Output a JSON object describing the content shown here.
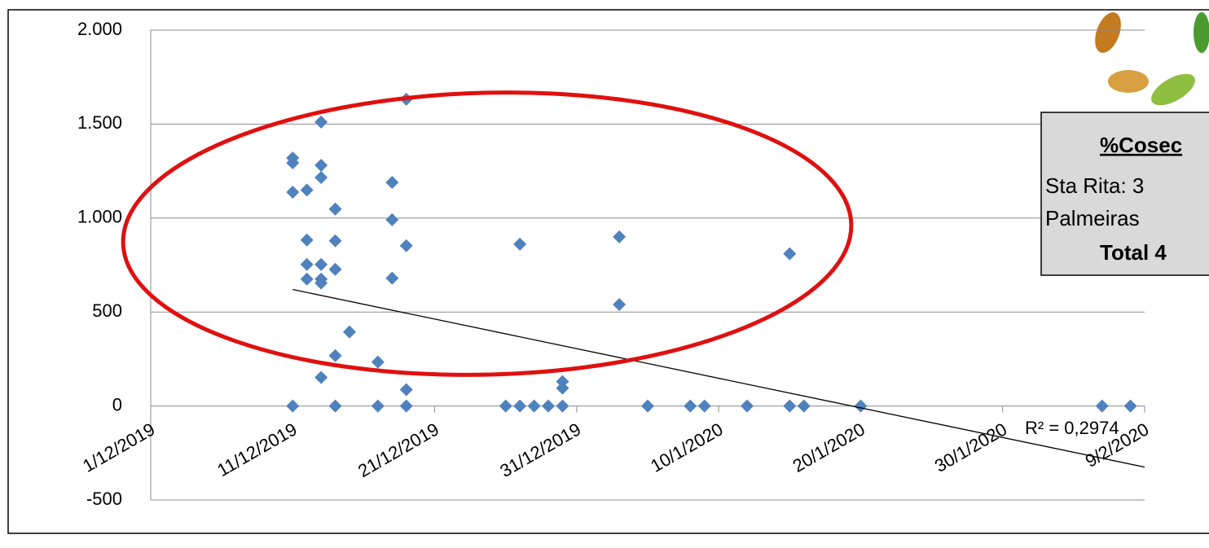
{
  "chart_data": {
    "type": "scatter",
    "x": [
      "11/12/2019",
      "11/12/2019",
      "11/12/2019",
      "11/12/2019",
      "12/12/2019",
      "12/12/2019",
      "12/12/2019",
      "12/12/2019",
      "13/12/2019",
      "13/12/2019",
      "13/12/2019",
      "13/12/2019",
      "13/12/2019",
      "13/12/2019",
      "13/12/2019",
      "14/12/2019",
      "14/12/2019",
      "14/12/2019",
      "14/12/2019",
      "14/12/2019",
      "15/12/2019",
      "17/12/2019",
      "17/12/2019",
      "18/12/2019",
      "18/12/2019",
      "18/12/2019",
      "19/12/2019",
      "19/12/2019",
      "19/12/2019",
      "19/12/2019",
      "26/12/2019",
      "27/12/2019",
      "27/12/2019",
      "28/12/2019",
      "29/12/2019",
      "30/12/2019",
      "30/12/2019",
      "30/12/2019",
      "3/1/2020",
      "3/1/2020",
      "5/1/2020",
      "8/1/2020",
      "9/1/2020",
      "12/1/2020",
      "15/1/2020",
      "15/1/2020",
      "16/1/2020",
      "20/1/2020",
      "6/2/2020",
      "8/2/2020"
    ],
    "series": [
      {
        "color": "#4f81bd",
        "values": [
          1320,
          1294,
          1138,
          0,
          1149,
          883,
          753,
          675,
          1511,
          1281,
          1216,
          753,
          675,
          654,
          152,
          1048,
          879,
          727,
          268,
          0,
          394,
          234,
          0,
          1190,
          991,
          680,
          1632,
          853,
          87,
          0,
          0,
          861,
          0,
          0,
          0,
          130,
          95,
          0,
          900,
          540,
          0,
          0,
          0,
          0,
          810,
          0,
          0,
          0,
          0,
          0
        ]
      }
    ],
    "trendline": {
      "x": [
        "11/12/2019",
        "9/2/2020"
      ],
      "values": [
        620,
        -325
      ],
      "color": "#000000"
    },
    "r_squared": "R² = 0,2974",
    "xlim": [
      "1/12/2019",
      "9/2/2020"
    ],
    "xticks": [
      "1/12/2019",
      "11/12/2019",
      "21/12/2019",
      "31/12/2019",
      "10/1/2020",
      "20/1/2020",
      "30/1/2020",
      "9/2/2020"
    ],
    "ylim": [
      -500,
      2000
    ],
    "yticks": [
      -500,
      0,
      500,
      {
        "value": 1000,
        "label": "1.000"
      },
      {
        "value": 1500,
        "label": "1.500"
      },
      {
        "value": 2000,
        "label": "2.000"
      }
    ],
    "grid": true,
    "info_box": {
      "title": "%Cosec",
      "lines": [
        "Sta Rita: 3",
        "Palmeiras"
      ],
      "total": "Total 4"
    }
  }
}
